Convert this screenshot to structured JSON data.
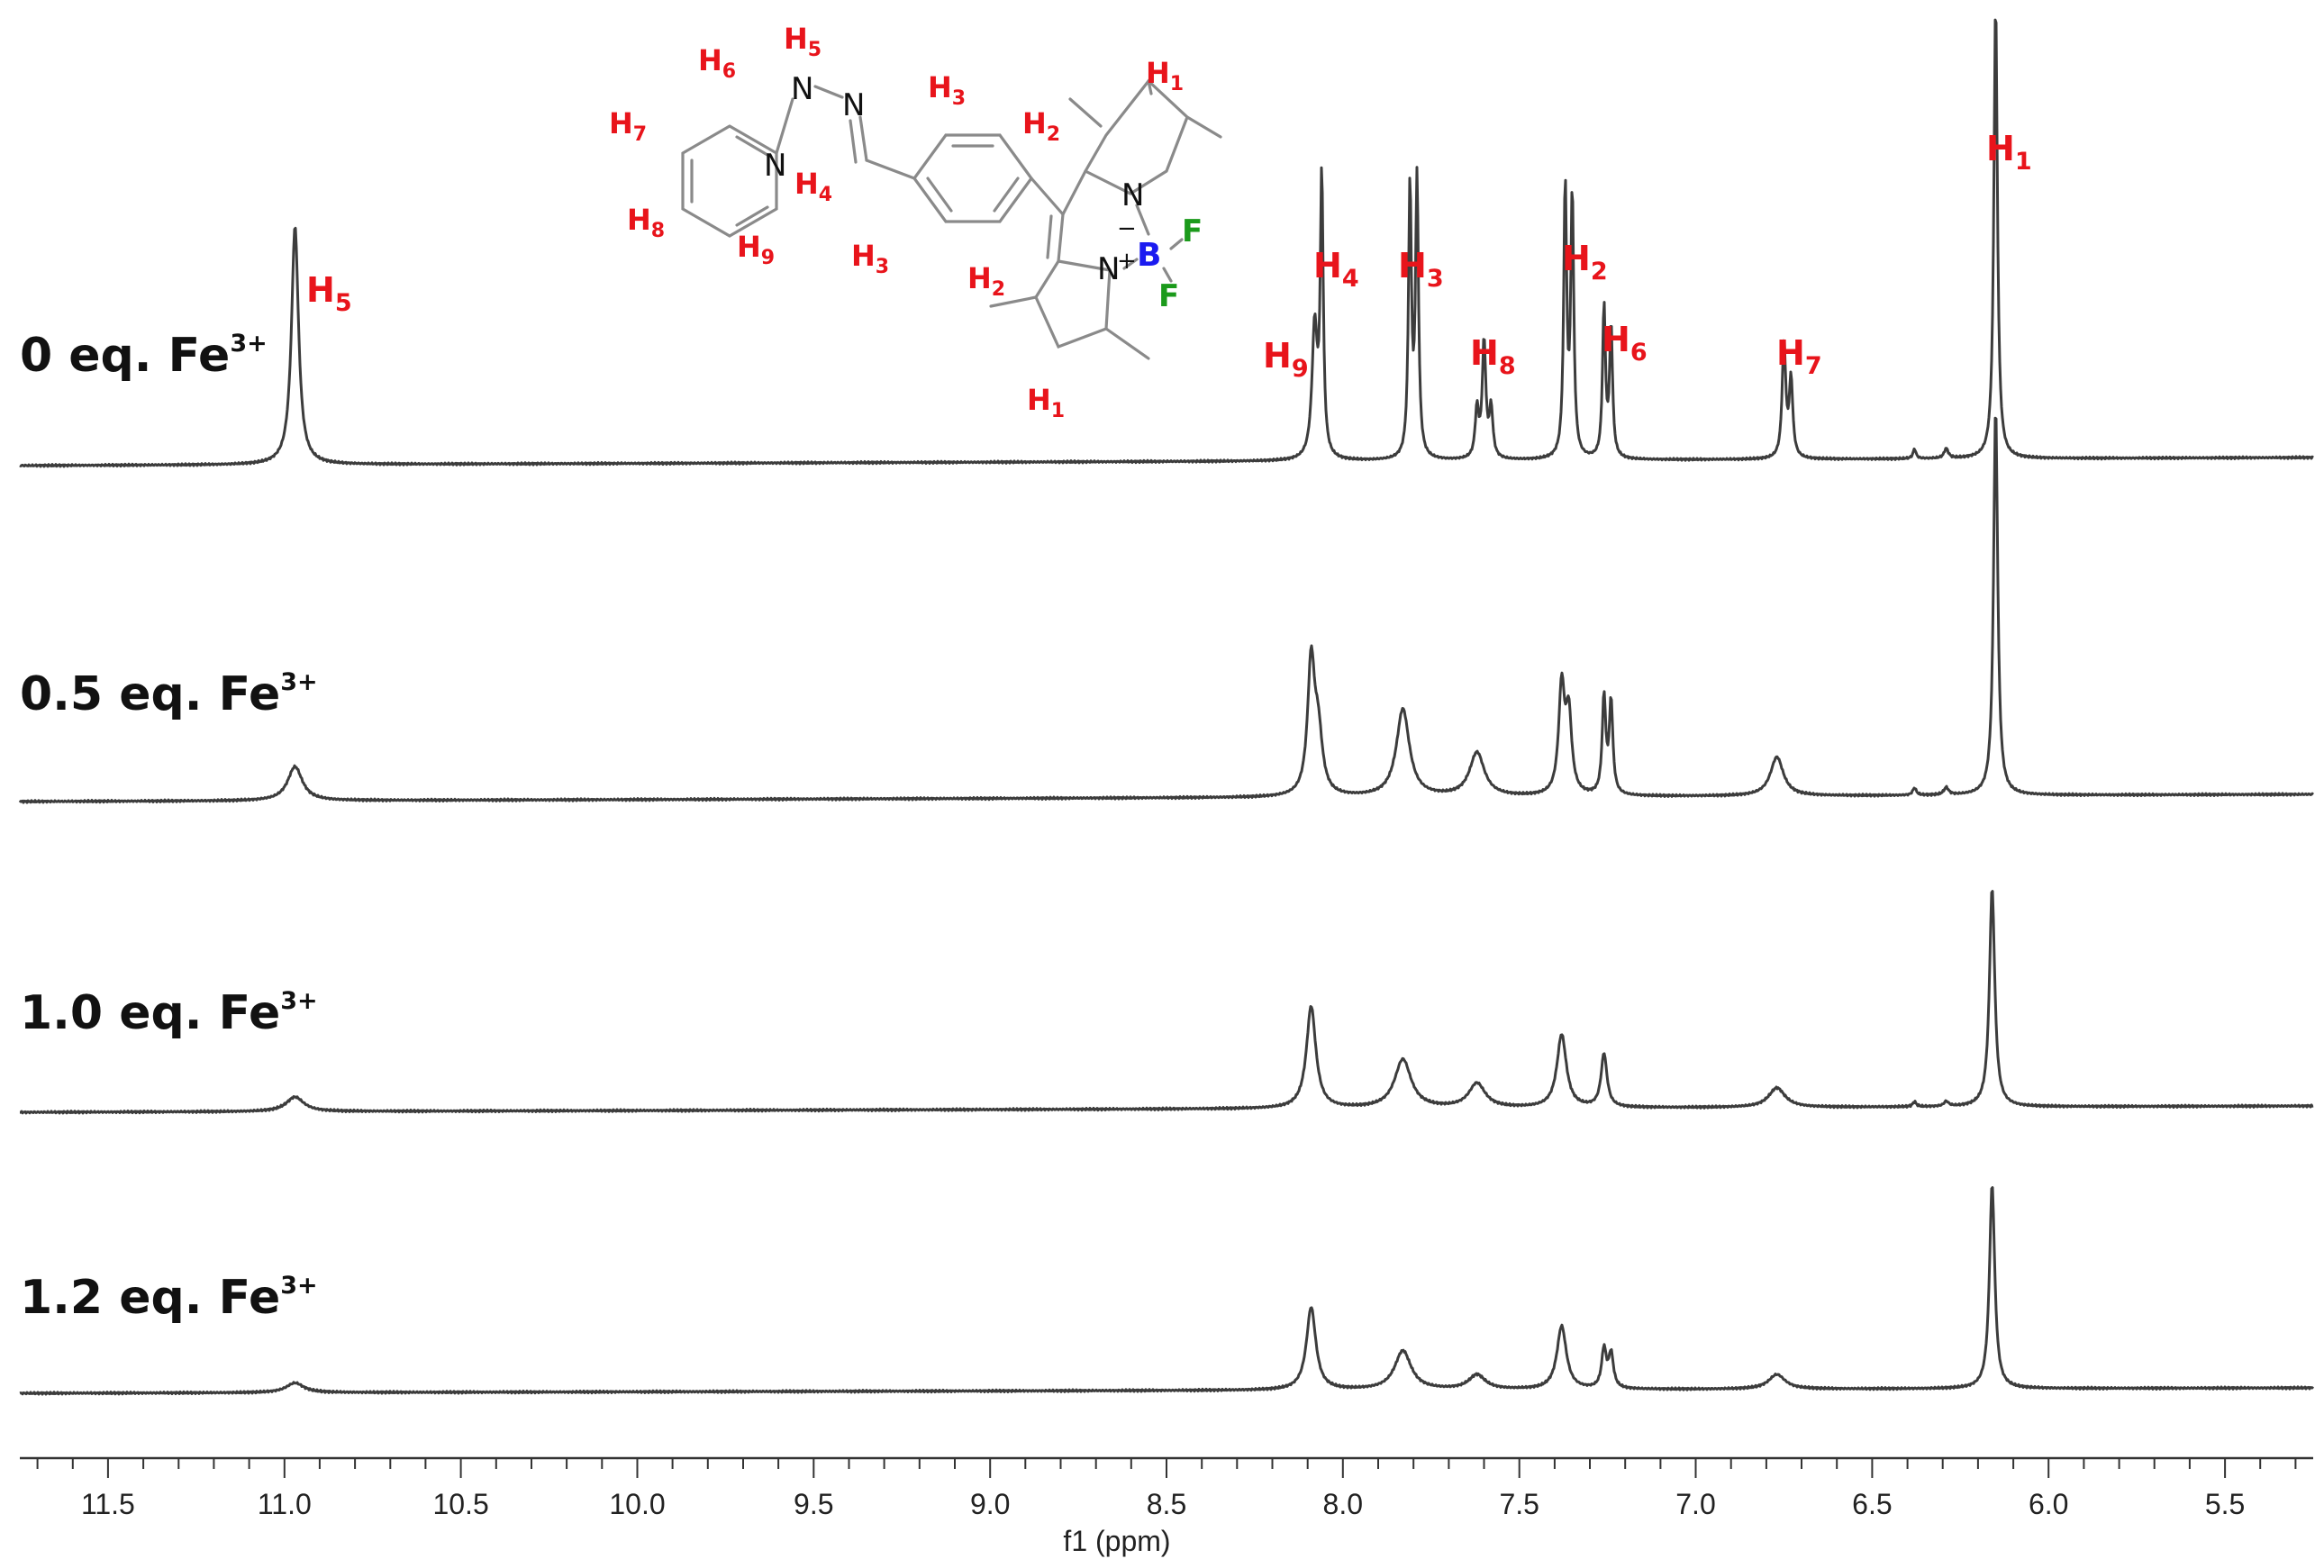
{
  "chart_data": {
    "type": "line",
    "title": "",
    "xlabel": "f1 (ppm)",
    "ylabel": "",
    "x_reversed": true,
    "xlim": [
      11.75,
      5.25
    ],
    "x_ticks": [
      11.5,
      11.0,
      10.5,
      10.0,
      9.5,
      9.0,
      8.5,
      8.0,
      7.5,
      7.0,
      6.5,
      6.0,
      5.5
    ],
    "x_tick_labels": [
      "11.5",
      "11.0",
      "10.5",
      "10.0",
      "9.5",
      "9.0",
      "8.5",
      "8.0",
      "7.5",
      "7.0",
      "6.5",
      "6.0",
      "5.5"
    ],
    "grid": false,
    "series": [
      {
        "label_main": "0 eq. Fe",
        "label_sup": "3+",
        "peaks": [
          {
            "ppm": 10.97,
            "height": 0.49,
            "width": 0.012
          },
          {
            "ppm": 8.08,
            "height": 0.27,
            "width": 0.009
          },
          {
            "ppm": 8.06,
            "height": 0.57,
            "width": 0.005
          },
          {
            "ppm": 7.81,
            "height": 0.56,
            "width": 0.005
          },
          {
            "ppm": 7.79,
            "height": 0.57,
            "width": 0.005
          },
          {
            "ppm": 7.62,
            "height": 0.1,
            "width": 0.006
          },
          {
            "ppm": 7.6,
            "height": 0.24,
            "width": 0.006
          },
          {
            "ppm": 7.58,
            "height": 0.1,
            "width": 0.006
          },
          {
            "ppm": 7.37,
            "height": 0.56,
            "width": 0.005
          },
          {
            "ppm": 7.35,
            "height": 0.54,
            "width": 0.005
          },
          {
            "ppm": 7.26,
            "height": 0.31,
            "width": 0.005
          },
          {
            "ppm": 7.24,
            "height": 0.27,
            "width": 0.005
          },
          {
            "ppm": 6.75,
            "height": 0.24,
            "width": 0.006
          },
          {
            "ppm": 6.73,
            "height": 0.16,
            "width": 0.006
          },
          {
            "ppm": 6.38,
            "height": 0.02,
            "width": 0.005
          },
          {
            "ppm": 6.29,
            "height": 0.02,
            "width": 0.007
          },
          {
            "ppm": 6.15,
            "height": 0.94,
            "width": 0.006
          }
        ]
      },
      {
        "label_main": "0.5 eq. Fe",
        "label_sup": "3+",
        "peaks": [
          {
            "ppm": 10.97,
            "height": 0.07,
            "width": 0.025
          },
          {
            "ppm": 8.09,
            "height": 0.27,
            "width": 0.012
          },
          {
            "ppm": 8.07,
            "height": 0.12,
            "width": 0.014
          },
          {
            "ppm": 7.83,
            "height": 0.18,
            "width": 0.022
          },
          {
            "ppm": 7.62,
            "height": 0.09,
            "width": 0.025
          },
          {
            "ppm": 7.38,
            "height": 0.22,
            "width": 0.01
          },
          {
            "ppm": 7.36,
            "height": 0.16,
            "width": 0.01
          },
          {
            "ppm": 7.26,
            "height": 0.2,
            "width": 0.006
          },
          {
            "ppm": 7.24,
            "height": 0.19,
            "width": 0.006
          },
          {
            "ppm": 6.77,
            "height": 0.08,
            "width": 0.022
          },
          {
            "ppm": 6.38,
            "height": 0.015,
            "width": 0.006
          },
          {
            "ppm": 6.29,
            "height": 0.015,
            "width": 0.008
          },
          {
            "ppm": 6.15,
            "height": 0.8,
            "width": 0.007
          }
        ]
      },
      {
        "label_main": "1.0 eq. Fe",
        "label_sup": "3+",
        "peaks": [
          {
            "ppm": 10.97,
            "height": 0.03,
            "width": 0.03
          },
          {
            "ppm": 8.09,
            "height": 0.21,
            "width": 0.016
          },
          {
            "ppm": 7.83,
            "height": 0.1,
            "width": 0.028
          },
          {
            "ppm": 7.62,
            "height": 0.05,
            "width": 0.028
          },
          {
            "ppm": 7.38,
            "height": 0.15,
            "width": 0.016
          },
          {
            "ppm": 7.26,
            "height": 0.11,
            "width": 0.01
          },
          {
            "ppm": 6.77,
            "height": 0.04,
            "width": 0.028
          },
          {
            "ppm": 6.38,
            "height": 0.01,
            "width": 0.006
          },
          {
            "ppm": 6.29,
            "height": 0.01,
            "width": 0.008
          },
          {
            "ppm": 6.16,
            "height": 0.45,
            "width": 0.009
          }
        ]
      },
      {
        "label_main": "1.2 eq. Fe",
        "label_sup": "3+",
        "peaks": [
          {
            "ppm": 10.97,
            "height": 0.02,
            "width": 0.03
          },
          {
            "ppm": 8.09,
            "height": 0.17,
            "width": 0.016
          },
          {
            "ppm": 7.83,
            "height": 0.08,
            "width": 0.028
          },
          {
            "ppm": 7.62,
            "height": 0.03,
            "width": 0.028
          },
          {
            "ppm": 7.38,
            "height": 0.13,
            "width": 0.016
          },
          {
            "ppm": 7.26,
            "height": 0.08,
            "width": 0.008
          },
          {
            "ppm": 7.24,
            "height": 0.07,
            "width": 0.008
          },
          {
            "ppm": 6.77,
            "height": 0.03,
            "width": 0.028
          },
          {
            "ppm": 6.16,
            "height": 0.42,
            "width": 0.009
          }
        ]
      }
    ],
    "annotations": [
      {
        "main": "H",
        "sub": "5",
        "ppm": 10.97
      },
      {
        "main": "H",
        "sub": "9",
        "ppm": 8.12
      },
      {
        "main": "H",
        "sub": "4",
        "ppm": 8.06
      },
      {
        "main": "H",
        "sub": "3",
        "ppm": 7.8
      },
      {
        "main": "H",
        "sub": "8",
        "ppm": 7.6
      },
      {
        "main": "H",
        "sub": "2",
        "ppm": 7.36
      },
      {
        "main": "H",
        "sub": "6",
        "ppm": 7.22
      },
      {
        "main": "H",
        "sub": "7",
        "ppm": 6.74
      },
      {
        "main": "H",
        "sub": "1",
        "ppm": 6.15
      }
    ]
  },
  "structure": {
    "atoms": {
      "n_pyridine": "N",
      "n_hydrazone": "N",
      "n_amine": "N",
      "n_pyrrole_top": "N",
      "n_pyrrole_bottom": "N",
      "n_plus": "+",
      "boron": "B",
      "boron_minus": "−",
      "fluorine_1": "F",
      "fluorine_2": "F"
    },
    "h_labels": [
      {
        "main": "H",
        "sub": "5"
      },
      {
        "main": "H",
        "sub": "6"
      },
      {
        "main": "H",
        "sub": "7"
      },
      {
        "main": "H",
        "sub": "8"
      },
      {
        "main": "H",
        "sub": "9"
      },
      {
        "main": "H",
        "sub": "4"
      },
      {
        "main": "H",
        "sub": "3"
      },
      {
        "main": "H",
        "sub": "3"
      },
      {
        "main": "H",
        "sub": "2"
      },
      {
        "main": "H",
        "sub": "2"
      },
      {
        "main": "H",
        "sub": "1"
      },
      {
        "main": "H",
        "sub": "1"
      }
    ]
  },
  "colors": {
    "trace": "#3c3c3c",
    "peak_label": "#e8141b",
    "boron": "#1b1bf0",
    "fluorine": "#1b9a1b",
    "bond": "#8a8a8a"
  }
}
